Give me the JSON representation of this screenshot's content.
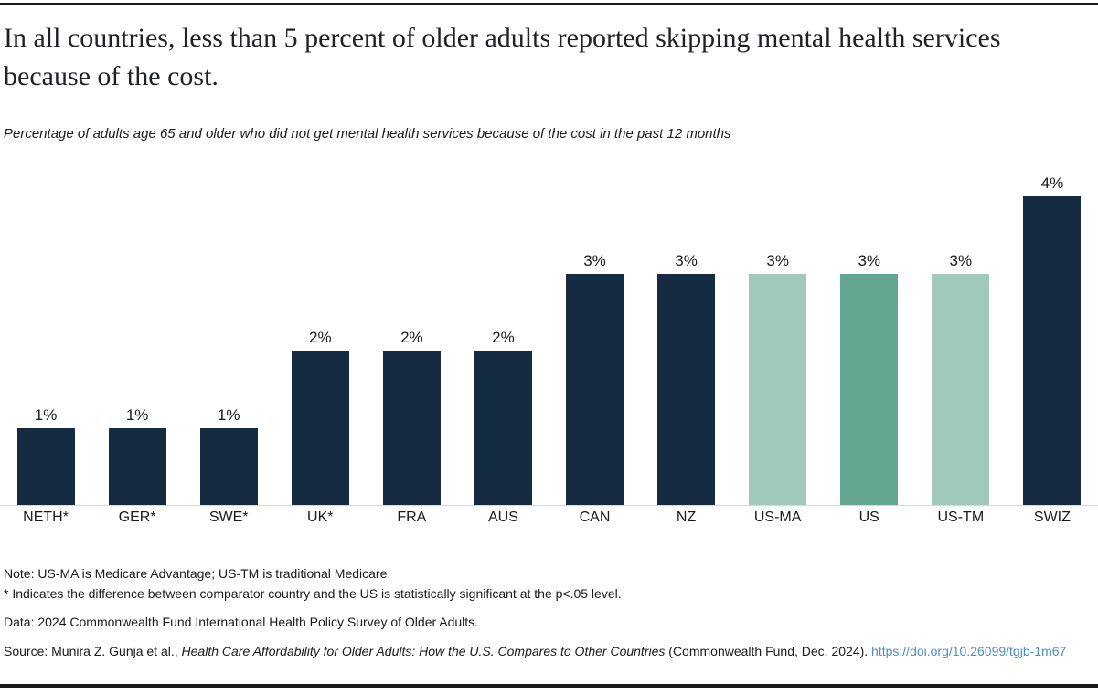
{
  "header": {
    "title": "In all countries, less than 5 percent of older adults reported skipping mental health services because of the cost.",
    "subtitle": "Percentage of adults age 65 and older who did not get mental health services because of the cost in the past 12 months"
  },
  "chart_data": {
    "type": "bar",
    "title": "In all countries, less than 5 percent of older adults reported skipping mental health services because of the cost.",
    "subtitle": "Percentage of adults age 65 and older who did not get mental health services because of the cost in the past 12 months",
    "categories": [
      "NETH*",
      "GER*",
      "SWE*",
      "UK*",
      "FRA",
      "AUS",
      "CAN",
      "NZ",
      "US-MA",
      "US",
      "US-TM",
      "SWIZ"
    ],
    "values": [
      1,
      1,
      1,
      2,
      2,
      2,
      3,
      3,
      3,
      3,
      3,
      4
    ],
    "value_labels": [
      "1%",
      "1%",
      "1%",
      "2%",
      "2%",
      "2%",
      "3%",
      "3%",
      "3%",
      "3%",
      "3%",
      "4%"
    ],
    "bar_color_keys": [
      "navy",
      "navy",
      "navy",
      "navy",
      "navy",
      "navy",
      "navy",
      "navy",
      "light_green",
      "us_green",
      "light_green",
      "navy"
    ],
    "colors": {
      "navy": "#152b42",
      "us_green": "#65a693",
      "light_green": "#a0c9bc",
      "axis": "#d9d9d9",
      "link_blue": "#4a8fc7"
    },
    "xlabel": "",
    "ylabel": "",
    "ylim": [
      0,
      4.3
    ],
    "grid": false,
    "legend": "none",
    "unit": "percent"
  },
  "notes": {
    "note_line_1": "Note: US-MA is Medicare Advantage; US-TM is traditional Medicare.",
    "note_line_2": "* Indicates the difference between comparator country and the US is statistically significant at the p<.05 level.",
    "data_line": "Data: 2024 Commonwealth Fund International Health Policy Survey of Older Adults."
  },
  "source": {
    "prefix": "Source: Munira Z. Gunja et al., ",
    "italic_title": "Health Care Affordability for Older Adults: How the U.S. Compares to Other Countries",
    "suffix": " (Commonwealth Fund, Dec. 2024). ",
    "link_text": "https://doi.org/10.26099/tgjb-1m67",
    "link_href": "https://doi.org/10.26099/tgjb-1m67"
  }
}
